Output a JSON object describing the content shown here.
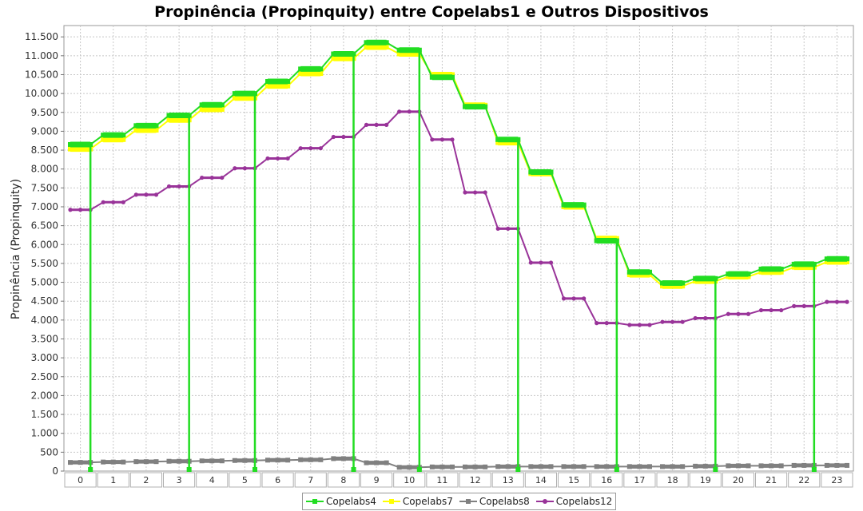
{
  "chart_data": {
    "type": "line",
    "title": "Propinência (Propinquity) entre Copelabs1 e Outros Dispositivos",
    "xlabel": "",
    "ylabel": "Propinência (Propinquity)",
    "categories": [
      "0",
      "1",
      "2",
      "3",
      "4",
      "5",
      "6",
      "7",
      "8",
      "9",
      "10",
      "11",
      "12",
      "13",
      "14",
      "15",
      "16",
      "17",
      "18",
      "19",
      "20",
      "21",
      "22",
      "23"
    ],
    "ylim": [
      0,
      11800
    ],
    "yticks": [
      0,
      500,
      1000,
      1500,
      2000,
      2500,
      3000,
      3500,
      4000,
      4500,
      5000,
      5500,
      6000,
      6500,
      7000,
      7500,
      8000,
      8500,
      9000,
      9500,
      10000,
      10500,
      11000,
      11500
    ],
    "ytick_labels": [
      "0",
      "500",
      "1.000",
      "1.500",
      "2.000",
      "2.500",
      "3.000",
      "3.500",
      "4.000",
      "4.500",
      "5.000",
      "5.500",
      "6.000",
      "6.500",
      "7.000",
      "7.500",
      "8.000",
      "8.500",
      "9.000",
      "9.500",
      "10.000",
      "10.500",
      "11.000",
      "11.500"
    ],
    "grid": true,
    "legend_position": "bottom",
    "series": [
      {
        "name": "Copelabs4",
        "color": "#22dd22",
        "marker": "square",
        "values": [
          8650,
          8900,
          9150,
          9420,
          9700,
          10000,
          10320,
          10650,
          11050,
          11350,
          11150,
          10430,
          9650,
          8780,
          7920,
          7050,
          6100,
          5270,
          4980,
          5100,
          5220,
          5350,
          5480,
          5620
        ]
      },
      {
        "name": "Copelabs7",
        "color": "#ffff00",
        "marker": "square",
        "values": [
          8530,
          8780,
          9030,
          9300,
          9580,
          9880,
          10200,
          10530,
          10930,
          11230,
          11050,
          10500,
          9690,
          8700,
          7880,
          7000,
          6160,
          5200,
          4900,
          5030,
          5150,
          5270,
          5400,
          5540
        ]
      },
      {
        "name": "Copelabs8",
        "color": "#808080",
        "marker": "square",
        "values": [
          230,
          240,
          250,
          260,
          270,
          280,
          290,
          300,
          330,
          220,
          100,
          110,
          110,
          120,
          120,
          120,
          120,
          120,
          120,
          130,
          140,
          140,
          150,
          150
        ]
      },
      {
        "name": "Copelabs12",
        "color": "#993399",
        "marker": "circle",
        "values": [
          6920,
          7120,
          7320,
          7540,
          7770,
          8020,
          8280,
          8550,
          8850,
          9170,
          9520,
          8780,
          7380,
          6420,
          5520,
          4570,
          3920,
          3870,
          3950,
          4050,
          4160,
          4260,
          4370,
          4480
        ]
      }
    ],
    "drops": [
      0,
      3,
      5,
      8,
      10,
      13,
      16,
      19,
      22
    ]
  }
}
